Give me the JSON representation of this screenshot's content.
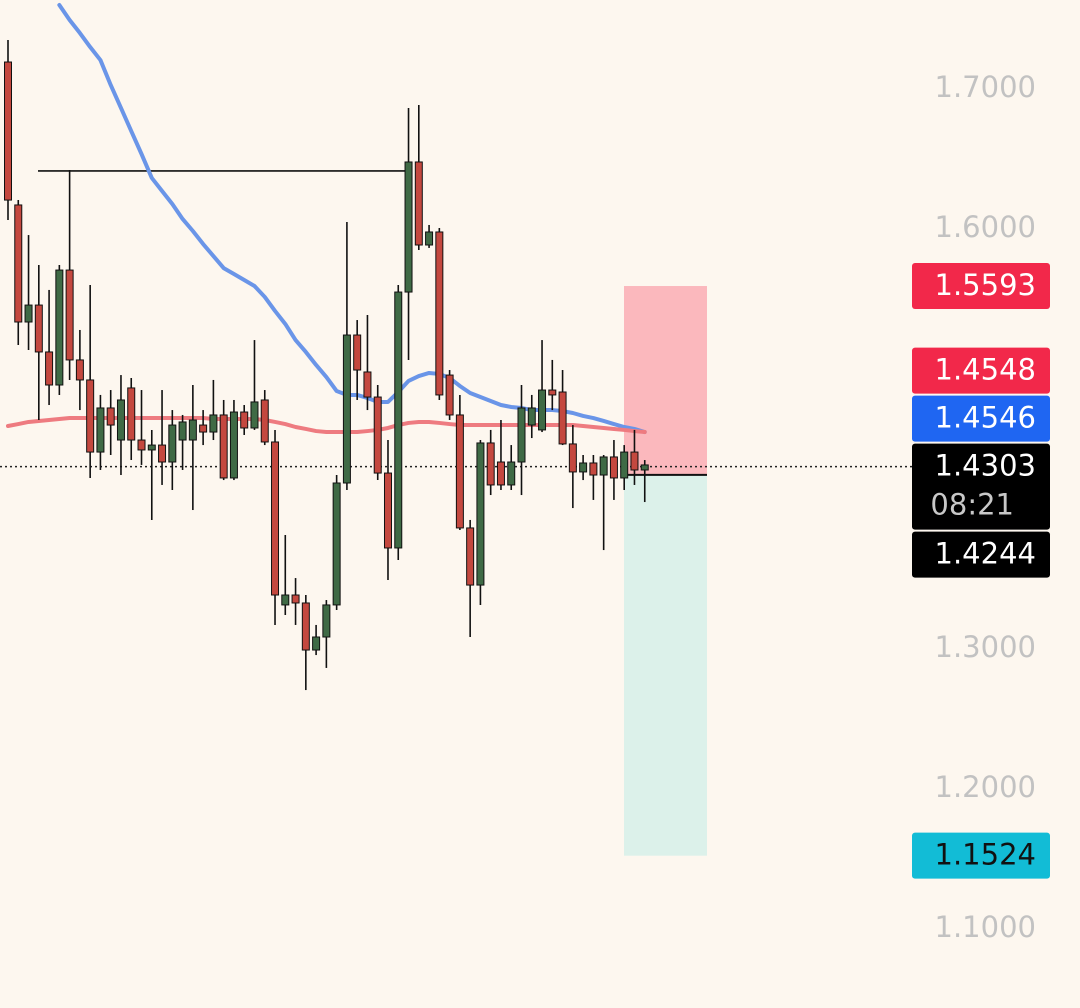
{
  "chart_data": {
    "type": "candlestick",
    "background": "#fdf7ef",
    "ylim": [
      1.0436,
      1.7636
    ],
    "yticks": [
      {
        "value": 1.7,
        "label": "1.7000"
      },
      {
        "value": 1.6,
        "label": "1.6000"
      },
      {
        "value": 1.3,
        "label": "1.3000"
      },
      {
        "value": 1.2,
        "label": "1.2000"
      },
      {
        "value": 1.1,
        "label": "1.1000"
      }
    ],
    "up_color": "#3f6a45",
    "down_color": "#c4483f",
    "wick_color": "#111111",
    "candles": {
      "open": [
        1.7193,
        1.6172,
        1.5336,
        1.5457,
        1.5122,
        1.4886,
        1.5707,
        1.5065,
        1.4922,
        1.4407,
        1.4722,
        1.4493,
        1.4865,
        1.4493,
        1.4422,
        1.4457,
        1.4336,
        1.4493,
        1.4493,
        1.46,
        1.455,
        1.4672,
        1.4222,
        1.4693,
        1.4579,
        1.4779,
        1.4479,
        1.3315,
        1.3386,
        1.3329,
        1.2993,
        1.3086,
        1.3315,
        1.4186,
        1.5243,
        1.4979,
        1.48,
        1.4257,
        1.3722,
        1.555,
        1.6479,
        1.5886,
        1.5979,
        1.4957,
        1.4672,
        1.3865,
        1.3457,
        1.4472,
        1.4336,
        1.4172,
        1.4336,
        1.46,
        1.4565,
        1.485,
        1.4836,
        1.4465,
        1.4265,
        1.4329,
        1.4243,
        1.4372,
        1.4222,
        1.4407,
        1.4279
      ],
      "high": [
        1.735,
        1.6207,
        1.5957,
        1.5743,
        1.5565,
        1.5743,
        1.6422,
        1.5279,
        1.56,
        1.4815,
        1.485,
        1.4957,
        1.4936,
        1.485,
        1.4565,
        1.485,
        1.4707,
        1.4672,
        1.4886,
        1.4707,
        1.4922,
        1.4779,
        1.4779,
        1.4743,
        1.5207,
        1.485,
        1.4565,
        1.3815,
        1.3507,
        1.3386,
        1.3172,
        1.335,
        1.4243,
        1.605,
        1.535,
        1.5386,
        1.4886,
        1.4493,
        1.56,
        1.6865,
        1.6886,
        1.6029,
        1.6007,
        1.4993,
        1.4815,
        1.3922,
        1.4493,
        1.4565,
        1.4636,
        1.4457,
        1.4886,
        1.4815,
        1.5207,
        1.5065,
        1.4993,
        1.46,
        1.4386,
        1.4386,
        1.4386,
        1.4493,
        1.4457,
        1.4565,
        1.435
      ],
      "low": [
        1.6065,
        1.5172,
        1.5136,
        1.4636,
        1.4743,
        1.4815,
        1.4922,
        1.4707,
        1.4222,
        1.4279,
        1.4386,
        1.4243,
        1.435,
        1.4315,
        1.3922,
        1.4172,
        1.4136,
        1.4279,
        1.3993,
        1.4457,
        1.4493,
        1.4207,
        1.4207,
        1.4529,
        1.4565,
        1.4457,
        1.3172,
        1.3243,
        1.3172,
        1.2707,
        1.2957,
        1.2865,
        1.3279,
        1.4136,
        1.4779,
        1.4707,
        1.4207,
        1.3493,
        1.3636,
        1.5065,
        1.585,
        1.5865,
        1.4779,
        1.4636,
        1.385,
        1.3086,
        1.3315,
        1.41,
        1.4136,
        1.4136,
        1.41,
        1.4507,
        1.455,
        1.4707,
        1.4457,
        1.4007,
        1.4207,
        1.4065,
        1.3707,
        1.4065,
        1.4136,
        1.4172,
        1.405
      ],
      "close": [
        1.6207,
        1.5336,
        1.5457,
        1.5122,
        1.4886,
        1.5707,
        1.5065,
        1.4922,
        1.4407,
        1.4722,
        1.46,
        1.4779,
        1.4493,
        1.4422,
        1.4457,
        1.4336,
        1.46,
        1.4622,
        1.4636,
        1.455,
        1.4672,
        1.4222,
        1.4693,
        1.4579,
        1.4765,
        1.4479,
        1.3386,
        1.3386,
        1.3329,
        1.2993,
        1.3086,
        1.3315,
        1.4186,
        1.5243,
        1.4993,
        1.48,
        1.4257,
        1.3722,
        1.555,
        1.6479,
        1.5886,
        1.5979,
        1.4815,
        1.4672,
        1.3865,
        1.3457,
        1.4472,
        1.4172,
        1.4172,
        1.4336,
        1.4722,
        1.4722,
        1.485,
        1.4815,
        1.4465,
        1.4265,
        1.4329,
        1.4243,
        1.4372,
        1.4222,
        1.4407,
        1.4279,
        1.4315
      ]
    },
    "moving_averages": [
      {
        "color": "#6a95e8",
        "values": [
          null,
          null,
          null,
          null,
          null,
          1.76,
          1.7493,
          1.74,
          1.73,
          1.7207,
          1.7029,
          1.6865,
          1.67,
          1.6536,
          1.6365,
          1.6272,
          1.6179,
          1.6072,
          1.5986,
          1.5893,
          1.5807,
          1.5721,
          1.5679,
          1.5636,
          1.5593,
          1.5515,
          1.5415,
          1.5322,
          1.5207,
          1.5122,
          1.5029,
          1.4943,
          1.4843,
          1.4815,
          1.4815,
          1.4793,
          1.4765,
          1.4765,
          1.4836,
          1.4915,
          1.495,
          1.4972,
          1.4965,
          1.4936,
          1.4879,
          1.4829,
          1.48,
          1.4772,
          1.4743,
          1.4729,
          1.4722,
          1.4707,
          1.4707,
          1.4707,
          1.47,
          1.4686,
          1.4665,
          1.465,
          1.4629,
          1.4607,
          1.4586,
          1.4572,
          1.455
        ]
      },
      {
        "color": "#ee7b80",
        "values": [
          1.4593,
          1.4607,
          1.4622,
          1.4629,
          1.4636,
          1.4643,
          1.465,
          1.465,
          1.465,
          1.465,
          1.465,
          1.465,
          1.465,
          1.465,
          1.465,
          1.465,
          1.465,
          1.465,
          1.465,
          1.465,
          1.4643,
          1.4643,
          1.4643,
          1.4643,
          1.4643,
          1.4636,
          1.4622,
          1.4607,
          1.4586,
          1.4572,
          1.4557,
          1.455,
          1.455,
          1.455,
          1.455,
          1.4557,
          1.4565,
          1.4579,
          1.46,
          1.4615,
          1.4622,
          1.4622,
          1.4615,
          1.4607,
          1.46,
          1.46,
          1.46,
          1.46,
          1.46,
          1.46,
          1.46,
          1.46,
          1.46,
          1.46,
          1.46,
          1.46,
          1.4593,
          1.4586,
          1.4579,
          1.4572,
          1.4565,
          1.4557,
          1.455
        ]
      }
    ],
    "level": 1.6415,
    "position": {
      "stop": 1.5593,
      "entry": 1.4244,
      "target": 1.1524,
      "risk_color": "#fbb8bd",
      "reward_color": "#dcf1ea"
    },
    "price_labels": [
      {
        "value": 1.5593,
        "label": "1.5593",
        "color": "#f2284a",
        "text_color": "#ffffff"
      },
      {
        "value": 1.4548,
        "label": "1.4548",
        "color": "#f2284a",
        "text_color": "#ffffff"
      },
      {
        "value": 1.4546,
        "label": "1.4546",
        "color": "#1f66f2",
        "text_color": "#ffffff"
      },
      {
        "value": 1.4303,
        "label": "1.4303",
        "countdown": "08:21",
        "color": "#000000",
        "text_color": "#ffffff"
      },
      {
        "value": 1.4244,
        "label": "1.4244",
        "color": "#000000",
        "text_color": "#ffffff"
      },
      {
        "value": 1.1524,
        "label": "1.1524",
        "color": "#12bcd6",
        "text_color": "#111111"
      }
    ]
  }
}
